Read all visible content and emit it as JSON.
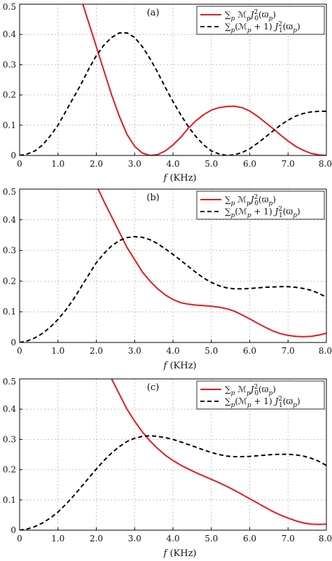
{
  "chart_data": [
    {
      "type": "line",
      "panel_label": "(a)",
      "xlabel": "f (KHz)",
      "xlim": [
        0,
        8
      ],
      "ylim": [
        0,
        0.5
      ],
      "x_ticks": [
        "0",
        "1.0",
        "2.0",
        "3.0",
        "4.0",
        "5.0",
        "6.0",
        "7.0",
        "8.0"
      ],
      "y_ticks": [
        "0",
        "0.1",
        "0.2",
        "0.3",
        "0.4",
        "0.5"
      ],
      "grid": true,
      "legend_position": "top-right",
      "series": [
        {
          "name": "∑p ℳp J0²(ϖp)",
          "color": "#e41a1c",
          "style": "solid",
          "points": [
            [
              1.65,
              0.5
            ],
            [
              1.8,
              0.44
            ],
            [
              2.0,
              0.36
            ],
            [
              2.2,
              0.28
            ],
            [
              2.4,
              0.2
            ],
            [
              2.6,
              0.13
            ],
            [
              2.8,
              0.07
            ],
            [
              3.0,
              0.03
            ],
            [
              3.2,
              0.008
            ],
            [
              3.4,
              0.0
            ],
            [
              3.6,
              0.003
            ],
            [
              3.8,
              0.015
            ],
            [
              4.0,
              0.035
            ],
            [
              4.2,
              0.06
            ],
            [
              4.4,
              0.09
            ],
            [
              4.6,
              0.115
            ],
            [
              4.8,
              0.135
            ],
            [
              5.0,
              0.15
            ],
            [
              5.2,
              0.158
            ],
            [
              5.4,
              0.162
            ],
            [
              5.6,
              0.163
            ],
            [
              5.8,
              0.158
            ],
            [
              6.0,
              0.147
            ],
            [
              6.2,
              0.13
            ],
            [
              6.4,
              0.11
            ],
            [
              6.6,
              0.09
            ],
            [
              6.8,
              0.068
            ],
            [
              7.0,
              0.048
            ],
            [
              7.2,
              0.03
            ],
            [
              7.4,
              0.017
            ],
            [
              7.6,
              0.007
            ],
            [
              7.8,
              0.002
            ],
            [
              8.0,
              0.0
            ]
          ]
        },
        {
          "name": "∑p (ℳp + 1) J1²(ϖp)",
          "color": "#000000",
          "style": "dashed",
          "points": [
            [
              0.0,
              0.0
            ],
            [
              0.2,
              0.005
            ],
            [
              0.4,
              0.015
            ],
            [
              0.6,
              0.035
            ],
            [
              0.8,
              0.065
            ],
            [
              1.0,
              0.1
            ],
            [
              1.2,
              0.145
            ],
            [
              1.4,
              0.19
            ],
            [
              1.6,
              0.235
            ],
            [
              1.8,
              0.285
            ],
            [
              2.0,
              0.33
            ],
            [
              2.2,
              0.365
            ],
            [
              2.4,
              0.39
            ],
            [
              2.6,
              0.405
            ],
            [
              2.8,
              0.405
            ],
            [
              3.0,
              0.39
            ],
            [
              3.2,
              0.36
            ],
            [
              3.4,
              0.32
            ],
            [
              3.6,
              0.275
            ],
            [
              3.8,
              0.225
            ],
            [
              4.0,
              0.178
            ],
            [
              4.2,
              0.135
            ],
            [
              4.4,
              0.095
            ],
            [
              4.6,
              0.062
            ],
            [
              4.8,
              0.035
            ],
            [
              5.0,
              0.015
            ],
            [
              5.2,
              0.005
            ],
            [
              5.4,
              0.0
            ],
            [
              5.6,
              0.002
            ],
            [
              5.8,
              0.01
            ],
            [
              6.0,
              0.022
            ],
            [
              6.2,
              0.04
            ],
            [
              6.4,
              0.06
            ],
            [
              6.6,
              0.08
            ],
            [
              6.8,
              0.1
            ],
            [
              7.0,
              0.117
            ],
            [
              7.2,
              0.13
            ],
            [
              7.4,
              0.139
            ],
            [
              7.6,
              0.144
            ],
            [
              7.8,
              0.146
            ],
            [
              8.0,
              0.146
            ]
          ]
        }
      ]
    },
    {
      "type": "line",
      "panel_label": "(b)",
      "xlabel": "f (KHz)",
      "xlim": [
        0,
        8
      ],
      "ylim": [
        0,
        0.5
      ],
      "x_ticks": [
        "0",
        "1.0",
        "2.0",
        "3.0",
        "4.0",
        "5.0",
        "6.0",
        "7.0",
        "8.0"
      ],
      "y_ticks": [
        "0",
        "0.1",
        "0.2",
        "0.3",
        "0.4",
        "0.5"
      ],
      "grid": true,
      "legend_position": "top-right",
      "series": [
        {
          "name": "∑p ℳp J0²(ϖp)",
          "color": "#e41a1c",
          "style": "solid",
          "points": [
            [
              2.05,
              0.5
            ],
            [
              2.2,
              0.46
            ],
            [
              2.4,
              0.41
            ],
            [
              2.6,
              0.36
            ],
            [
              2.8,
              0.31
            ],
            [
              3.0,
              0.27
            ],
            [
              3.2,
              0.23
            ],
            [
              3.4,
              0.2
            ],
            [
              3.6,
              0.175
            ],
            [
              3.8,
              0.155
            ],
            [
              4.0,
              0.14
            ],
            [
              4.2,
              0.13
            ],
            [
              4.4,
              0.125
            ],
            [
              4.6,
              0.122
            ],
            [
              4.8,
              0.12
            ],
            [
              5.0,
              0.118
            ],
            [
              5.2,
              0.115
            ],
            [
              5.4,
              0.11
            ],
            [
              5.6,
              0.102
            ],
            [
              5.8,
              0.09
            ],
            [
              6.0,
              0.077
            ],
            [
              6.2,
              0.063
            ],
            [
              6.4,
              0.05
            ],
            [
              6.6,
              0.038
            ],
            [
              6.8,
              0.029
            ],
            [
              7.0,
              0.023
            ],
            [
              7.2,
              0.02
            ],
            [
              7.4,
              0.019
            ],
            [
              7.6,
              0.02
            ],
            [
              7.8,
              0.024
            ],
            [
              8.0,
              0.03
            ]
          ]
        },
        {
          "name": "∑p (ℳp + 1) J1²(ϖp)",
          "color": "#000000",
          "style": "dashed",
          "points": [
            [
              0.0,
              0.0
            ],
            [
              0.2,
              0.005
            ],
            [
              0.4,
              0.015
            ],
            [
              0.6,
              0.03
            ],
            [
              0.8,
              0.05
            ],
            [
              1.0,
              0.075
            ],
            [
              1.2,
              0.105
            ],
            [
              1.4,
              0.14
            ],
            [
              1.6,
              0.18
            ],
            [
              1.8,
              0.22
            ],
            [
              2.0,
              0.26
            ],
            [
              2.2,
              0.29
            ],
            [
              2.4,
              0.315
            ],
            [
              2.6,
              0.332
            ],
            [
              2.8,
              0.342
            ],
            [
              3.0,
              0.345
            ],
            [
              3.2,
              0.343
            ],
            [
              3.4,
              0.335
            ],
            [
              3.6,
              0.322
            ],
            [
              3.8,
              0.305
            ],
            [
              4.0,
              0.287
            ],
            [
              4.2,
              0.268
            ],
            [
              4.4,
              0.248
            ],
            [
              4.6,
              0.228
            ],
            [
              4.8,
              0.21
            ],
            [
              5.0,
              0.196
            ],
            [
              5.2,
              0.185
            ],
            [
              5.4,
              0.178
            ],
            [
              5.6,
              0.175
            ],
            [
              5.8,
              0.175
            ],
            [
              6.0,
              0.176
            ],
            [
              6.2,
              0.178
            ],
            [
              6.4,
              0.18
            ],
            [
              6.6,
              0.181
            ],
            [
              6.8,
              0.182
            ],
            [
              7.0,
              0.182
            ],
            [
              7.2,
              0.18
            ],
            [
              7.4,
              0.176
            ],
            [
              7.6,
              0.17
            ],
            [
              7.8,
              0.16
            ],
            [
              8.0,
              0.148
            ]
          ]
        }
      ]
    },
    {
      "type": "line",
      "panel_label": "(c)",
      "xlabel": "f (KHz)",
      "xlim": [
        0,
        8
      ],
      "ylim": [
        0,
        0.5
      ],
      "x_ticks": [
        "0",
        "1.0",
        "2.0",
        "3.0",
        "4.0",
        "5.0",
        "6.0",
        "7.0",
        "8.0"
      ],
      "y_ticks": [
        "0",
        "0.1",
        "0.2",
        "0.3",
        "0.4",
        "0.5"
      ],
      "grid": true,
      "legend_position": "top-right",
      "series": [
        {
          "name": "∑p ℳp J0²(ϖp)",
          "color": "#e41a1c",
          "style": "solid",
          "points": [
            [
              2.4,
              0.5
            ],
            [
              2.6,
              0.45
            ],
            [
              2.8,
              0.4
            ],
            [
              3.0,
              0.36
            ],
            [
              3.2,
              0.325
            ],
            [
              3.4,
              0.295
            ],
            [
              3.6,
              0.27
            ],
            [
              3.8,
              0.248
            ],
            [
              4.0,
              0.23
            ],
            [
              4.2,
              0.215
            ],
            [
              4.4,
              0.202
            ],
            [
              4.6,
              0.19
            ],
            [
              4.8,
              0.179
            ],
            [
              5.0,
              0.168
            ],
            [
              5.2,
              0.157
            ],
            [
              5.4,
              0.145
            ],
            [
              5.6,
              0.132
            ],
            [
              5.8,
              0.118
            ],
            [
              6.0,
              0.104
            ],
            [
              6.2,
              0.09
            ],
            [
              6.4,
              0.076
            ],
            [
              6.6,
              0.062
            ],
            [
              6.8,
              0.05
            ],
            [
              7.0,
              0.04
            ],
            [
              7.2,
              0.031
            ],
            [
              7.4,
              0.024
            ],
            [
              7.6,
              0.02
            ],
            [
              7.8,
              0.019
            ],
            [
              8.0,
              0.02
            ]
          ]
        },
        {
          "name": "∑p (ℳp + 1) J1²(ϖp)",
          "color": "#000000",
          "style": "dashed",
          "points": [
            [
              0.0,
              0.0
            ],
            [
              0.2,
              0.004
            ],
            [
              0.4,
              0.012
            ],
            [
              0.6,
              0.024
            ],
            [
              0.8,
              0.04
            ],
            [
              1.0,
              0.06
            ],
            [
              1.2,
              0.085
            ],
            [
              1.4,
              0.112
            ],
            [
              1.6,
              0.142
            ],
            [
              1.8,
              0.172
            ],
            [
              2.0,
              0.202
            ],
            [
              2.2,
              0.23
            ],
            [
              2.4,
              0.255
            ],
            [
              2.6,
              0.276
            ],
            [
              2.8,
              0.293
            ],
            [
              3.0,
              0.304
            ],
            [
              3.2,
              0.31
            ],
            [
              3.4,
              0.312
            ],
            [
              3.6,
              0.31
            ],
            [
              3.8,
              0.306
            ],
            [
              4.0,
              0.3
            ],
            [
              4.2,
              0.292
            ],
            [
              4.4,
              0.283
            ],
            [
              4.6,
              0.274
            ],
            [
              4.8,
              0.265
            ],
            [
              5.0,
              0.257
            ],
            [
              5.2,
              0.25
            ],
            [
              5.4,
              0.245
            ],
            [
              5.6,
              0.243
            ],
            [
              5.8,
              0.243
            ],
            [
              6.0,
              0.244
            ],
            [
              6.2,
              0.246
            ],
            [
              6.4,
              0.248
            ],
            [
              6.6,
              0.25
            ],
            [
              6.8,
              0.251
            ],
            [
              7.0,
              0.251
            ],
            [
              7.2,
              0.249
            ],
            [
              7.4,
              0.245
            ],
            [
              7.6,
              0.238
            ],
            [
              7.8,
              0.228
            ],
            [
              8.0,
              0.214
            ]
          ]
        }
      ]
    }
  ]
}
